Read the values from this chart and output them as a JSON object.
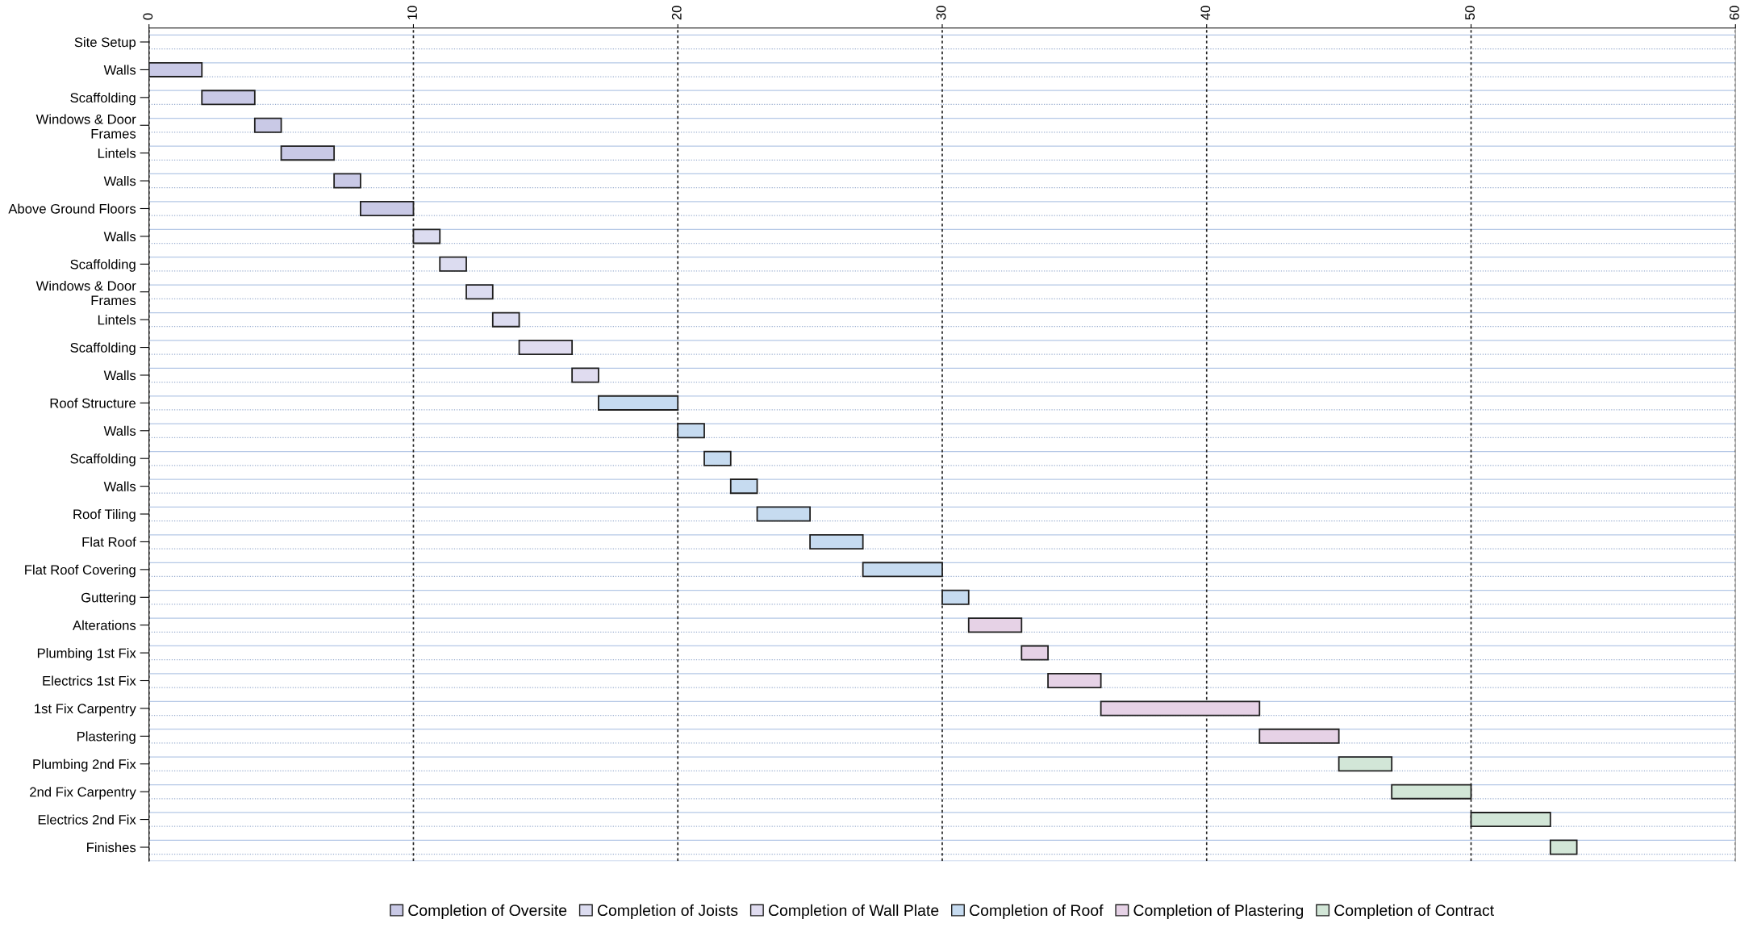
{
  "chart_data": {
    "type": "bar",
    "orientation": "horizontal",
    "categories": [
      "Site Setup",
      "Walls",
      "Scaffolding",
      "Windows & Door\nFrames",
      "Lintels",
      "Walls",
      "Above Ground Floors",
      "Walls",
      "Scaffolding",
      "Windows & Door\nFrames",
      "Lintels",
      "Scaffolding",
      "Walls",
      "Roof Structure",
      "Walls",
      "Scaffolding",
      "Walls",
      "Roof Tiling",
      "Flat Roof",
      "Flat Roof Covering",
      "Guttering",
      "Alterations",
      "Plumbing 1st Fix",
      "Electrics 1st Fix",
      "1st Fix Carpentry",
      "Plastering",
      "Plumbing 2nd Fix",
      "2nd Fix Carpentry",
      "Electrics 2nd Fix",
      "Finishes"
    ],
    "series": [
      {
        "name": "Completion of Oversite",
        "color": "#c9c9e6",
        "values": [
          null,
          2,
          2,
          1,
          2,
          1,
          2,
          null,
          null,
          null,
          null,
          null,
          null,
          null,
          null,
          null,
          null,
          null,
          null,
          null,
          null,
          null,
          null,
          null,
          null,
          null,
          null,
          null,
          null,
          null
        ],
        "base": [
          null,
          0,
          2,
          4,
          5,
          7,
          8,
          null,
          null,
          null,
          null,
          null,
          null,
          null,
          null,
          null,
          null,
          null,
          null,
          null,
          null,
          null,
          null,
          null,
          null,
          null,
          null,
          null,
          null,
          null
        ]
      },
      {
        "name": "Completion of Joists",
        "color": "#dcdcf0",
        "values": [
          null,
          null,
          null,
          null,
          null,
          null,
          null,
          1,
          1,
          1,
          1,
          null,
          null,
          null,
          null,
          null,
          null,
          null,
          null,
          null,
          null,
          null,
          null,
          null,
          null,
          null,
          null,
          null,
          null,
          null
        ],
        "base": [
          null,
          null,
          null,
          null,
          null,
          null,
          null,
          10,
          11,
          12,
          13,
          null,
          null,
          null,
          null,
          null,
          null,
          null,
          null,
          null,
          null,
          null,
          null,
          null,
          null,
          null,
          null,
          null,
          null,
          null
        ]
      },
      {
        "name": "Completion of Wall Plate",
        "color": "#e0dcf0",
        "values": [
          null,
          null,
          null,
          null,
          null,
          null,
          null,
          null,
          null,
          null,
          null,
          2,
          1,
          null,
          null,
          null,
          null,
          null,
          null,
          null,
          null,
          null,
          null,
          null,
          null,
          null,
          null,
          null,
          null,
          null
        ],
        "base": [
          null,
          null,
          null,
          null,
          null,
          null,
          null,
          null,
          null,
          null,
          null,
          14,
          16,
          null,
          null,
          null,
          null,
          null,
          null,
          null,
          null,
          null,
          null,
          null,
          null,
          null,
          null,
          null,
          null,
          null
        ]
      },
      {
        "name": "Completion of Roof",
        "color": "#c6dbf0",
        "values": [
          null,
          null,
          null,
          null,
          null,
          null,
          null,
          null,
          null,
          null,
          null,
          null,
          null,
          3,
          1,
          1,
          1,
          2,
          2,
          3,
          1,
          null,
          null,
          null,
          null,
          null,
          null,
          null,
          null,
          null
        ],
        "base": [
          null,
          null,
          null,
          null,
          null,
          null,
          null,
          null,
          null,
          null,
          null,
          null,
          null,
          17,
          20,
          21,
          22,
          23,
          25,
          27,
          30,
          null,
          null,
          null,
          null,
          null,
          null,
          null,
          null,
          null
        ]
      },
      {
        "name": "Completion of Plastering",
        "color": "#e6d2e6",
        "values": [
          null,
          null,
          null,
          null,
          null,
          null,
          null,
          null,
          null,
          null,
          null,
          null,
          null,
          null,
          null,
          null,
          null,
          null,
          null,
          null,
          null,
          2,
          1,
          2,
          6,
          3,
          null,
          null,
          null,
          null
        ],
        "base": [
          null,
          null,
          null,
          null,
          null,
          null,
          null,
          null,
          null,
          null,
          null,
          null,
          null,
          null,
          null,
          null,
          null,
          null,
          null,
          null,
          null,
          31,
          33,
          34,
          36,
          42,
          null,
          null,
          null,
          null
        ]
      },
      {
        "name": "Completion of Contract",
        "color": "#d2e6d7",
        "values": [
          null,
          null,
          null,
          null,
          null,
          null,
          null,
          null,
          null,
          null,
          null,
          null,
          null,
          null,
          null,
          null,
          null,
          null,
          null,
          null,
          null,
          null,
          null,
          null,
          null,
          null,
          2,
          3,
          3,
          1
        ],
        "base": [
          null,
          null,
          null,
          null,
          null,
          null,
          null,
          null,
          null,
          null,
          null,
          null,
          null,
          null,
          null,
          null,
          null,
          null,
          null,
          null,
          null,
          null,
          null,
          null,
          null,
          null,
          45,
          47,
          50,
          53
        ]
      }
    ],
    "xlim": [
      0,
      60
    ],
    "xticks": [
      0,
      10,
      20,
      30,
      40,
      50,
      60
    ],
    "grid": true,
    "legend": "bottom"
  }
}
